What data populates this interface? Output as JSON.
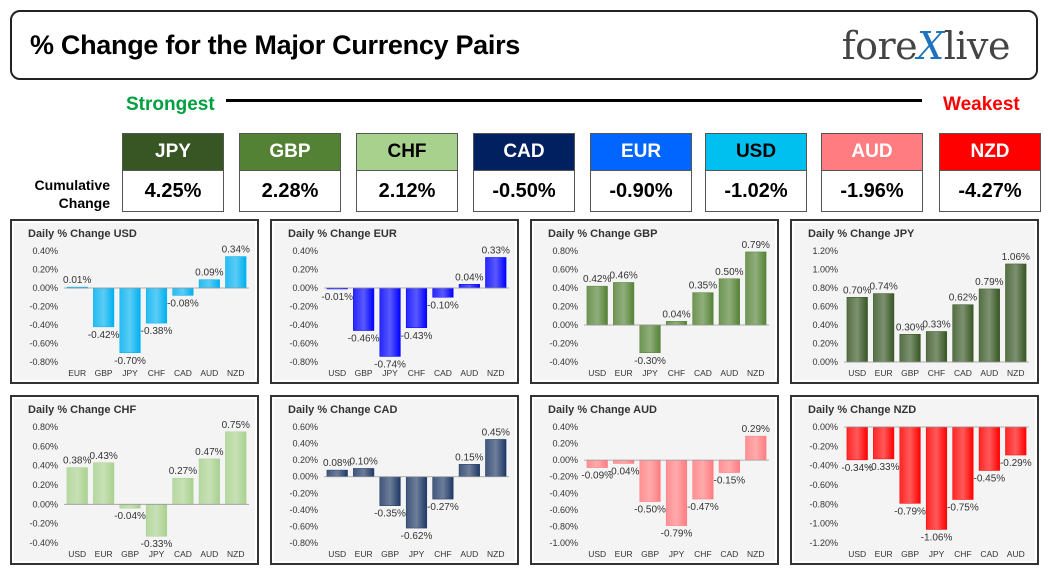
{
  "header": {
    "title": "% Change for the Major Currency Pairs",
    "logo_left": "fore",
    "logo_x": "X",
    "logo_right": "live"
  },
  "ranking": {
    "strongest_label": "Strongest",
    "weakest_label": "Weakest",
    "cumulative_label_1": "Cumulative",
    "cumulative_label_2": "Change",
    "tiles": [
      {
        "currency": "JPY",
        "value": "4.25%",
        "color": "#375623",
        "text_color": "#ffffff"
      },
      {
        "currency": "GBP",
        "value": "2.28%",
        "color": "#548235",
        "text_color": "#ffffff"
      },
      {
        "currency": "CHF",
        "value": "2.12%",
        "color": "#a9d18e",
        "text_color": "#000000"
      },
      {
        "currency": "CAD",
        "value": "-0.50%",
        "color": "#002060",
        "text_color": "#ffffff"
      },
      {
        "currency": "EUR",
        "value": "-0.90%",
        "color": "#0066ff",
        "text_color": "#ffffff"
      },
      {
        "currency": "USD",
        "value": "-1.02%",
        "color": "#00c0f0",
        "text_color": "#000000"
      },
      {
        "currency": "AUD",
        "value": "-1.96%",
        "color": "#ff7c80",
        "text_color": "#ffffff"
      },
      {
        "currency": "NZD",
        "value": "-4.27%",
        "color": "#ff0000",
        "text_color": "#ffffff"
      }
    ]
  },
  "chart_data": [
    {
      "type": "bar",
      "title": "Daily % Change USD",
      "color": "#00b0f0",
      "categories": [
        "EUR",
        "GBP",
        "JPY",
        "CHF",
        "CAD",
        "AUD",
        "NZD"
      ],
      "values": [
        0.01,
        -0.42,
        -0.7,
        -0.38,
        -0.08,
        0.09,
        0.34
      ],
      "labels": [
        "0.01%",
        "-0.42%",
        "-0.70%",
        "-0.38%",
        "-0.08%",
        "0.09%",
        "0.34%"
      ],
      "yticks": [
        0.4,
        0.2,
        0.0,
        -0.2,
        -0.4,
        -0.6,
        -0.8
      ],
      "ytick_labels": [
        "0.40%",
        "0.20%",
        "0.00%",
        "-0.20%",
        "-0.40%",
        "-0.60%",
        "-0.80%"
      ],
      "ylim": [
        -0.8,
        0.4
      ]
    },
    {
      "type": "bar",
      "title": "Daily % Change EUR",
      "color": "#0000ff",
      "categories": [
        "USD",
        "GBP",
        "JPY",
        "CHF",
        "CAD",
        "AUD",
        "NZD"
      ],
      "values": [
        -0.01,
        -0.46,
        -0.74,
        -0.43,
        -0.1,
        0.04,
        0.33
      ],
      "labels": [
        "-0.01%",
        "-0.46%",
        "-0.74%",
        "-0.43%",
        "-0.10%",
        "0.04%",
        "0.33%"
      ],
      "yticks": [
        0.4,
        0.2,
        0.0,
        -0.2,
        -0.4,
        -0.6,
        -0.8
      ],
      "ytick_labels": [
        "0.40%",
        "0.20%",
        "0.00%",
        "-0.20%",
        "-0.40%",
        "-0.60%",
        "-0.80%"
      ],
      "ylim": [
        -0.8,
        0.4
      ]
    },
    {
      "type": "bar",
      "title": "Daily % Change GBP",
      "color": "#548235",
      "categories": [
        "USD",
        "EUR",
        "JPY",
        "CHF",
        "CAD",
        "AUD",
        "NZD"
      ],
      "values": [
        0.42,
        0.46,
        -0.3,
        0.04,
        0.35,
        0.5,
        0.79
      ],
      "labels": [
        "0.42%",
        "0.46%",
        "-0.30%",
        "0.04%",
        "0.35%",
        "0.50%",
        "0.79%"
      ],
      "yticks": [
        0.8,
        0.6,
        0.4,
        0.2,
        0.0,
        -0.2,
        -0.4
      ],
      "ytick_labels": [
        "0.80%",
        "0.60%",
        "0.40%",
        "0.20%",
        "0.00%",
        "-0.20%",
        "-0.40%"
      ],
      "ylim": [
        -0.4,
        0.8
      ]
    },
    {
      "type": "bar",
      "title": "Daily % Change JPY",
      "color": "#375623",
      "categories": [
        "USD",
        "EUR",
        "GBP",
        "CHF",
        "CAD",
        "AUD",
        "NZD"
      ],
      "values": [
        0.7,
        0.74,
        0.3,
        0.33,
        0.62,
        0.79,
        1.06
      ],
      "labels": [
        "0.70%",
        "0.74%",
        "0.30%",
        "0.33%",
        "0.62%",
        "0.79%",
        "1.06%"
      ],
      "yticks": [
        1.2,
        1.0,
        0.8,
        0.6,
        0.4,
        0.2,
        0.0
      ],
      "ytick_labels": [
        "1.20%",
        "1.00%",
        "0.80%",
        "0.60%",
        "0.40%",
        "0.20%",
        "0.00%"
      ],
      "ylim": [
        0,
        1.2
      ]
    },
    {
      "type": "bar",
      "title": "Daily % Change CHF",
      "color": "#a9d18e",
      "categories": [
        "USD",
        "EUR",
        "GBP",
        "JPY",
        "CAD",
        "AUD",
        "NZD"
      ],
      "values": [
        0.38,
        0.43,
        -0.04,
        -0.33,
        0.27,
        0.47,
        0.75
      ],
      "labels": [
        "0.38%",
        "0.43%",
        "-0.04%",
        "-0.33%",
        "0.27%",
        "0.47%",
        "0.75%"
      ],
      "yticks": [
        0.8,
        0.6,
        0.4,
        0.2,
        0.0,
        -0.2,
        -0.4
      ],
      "ytick_labels": [
        "0.80%",
        "0.60%",
        "0.40%",
        "0.20%",
        "0.00%",
        "-0.20%",
        "-0.40%"
      ],
      "ylim": [
        -0.4,
        0.8
      ]
    },
    {
      "type": "bar",
      "title": "Daily % Change CAD",
      "color": "#1f3864",
      "categories": [
        "USD",
        "EUR",
        "GBP",
        "JPY",
        "CHF",
        "AUD",
        "NZD"
      ],
      "values": [
        0.08,
        0.1,
        -0.35,
        -0.62,
        -0.27,
        0.15,
        0.45
      ],
      "labels": [
        "0.08%",
        "0.10%",
        "-0.35%",
        "-0.62%",
        "-0.27%",
        "0.15%",
        "0.45%"
      ],
      "yticks": [
        0.6,
        0.4,
        0.2,
        0.0,
        -0.2,
        -0.4,
        -0.6,
        -0.8
      ],
      "ytick_labels": [
        "0.60%",
        "0.40%",
        "0.20%",
        "0.00%",
        "-0.20%",
        "-0.40%",
        "-0.60%",
        "-0.80%"
      ],
      "ylim": [
        -0.8,
        0.6
      ]
    },
    {
      "type": "bar",
      "title": "Daily % Change AUD",
      "color": "#ff7c80",
      "categories": [
        "USD",
        "EUR",
        "GBP",
        "JPY",
        "CHF",
        "CAD",
        "NZD"
      ],
      "values": [
        -0.09,
        -0.04,
        -0.5,
        -0.79,
        -0.47,
        -0.15,
        0.29
      ],
      "labels": [
        "-0.09%",
        "-0.04%",
        "-0.50%",
        "-0.79%",
        "-0.47%",
        "-0.15%",
        "0.29%"
      ],
      "yticks": [
        0.4,
        0.2,
        0.0,
        -0.2,
        -0.4,
        -0.6,
        -0.8,
        -1.0
      ],
      "ytick_labels": [
        "0.40%",
        "0.20%",
        "0.00%",
        "-0.20%",
        "-0.40%",
        "-0.60%",
        "-0.80%",
        "-1.00%"
      ],
      "ylim": [
        -1.0,
        0.4
      ]
    },
    {
      "type": "bar",
      "title": "Daily % Change NZD",
      "color": "#ff0000",
      "categories": [
        "USD",
        "EUR",
        "GBP",
        "JPY",
        "CHF",
        "CAD",
        "AUD"
      ],
      "values": [
        -0.34,
        -0.33,
        -0.79,
        -1.06,
        -0.75,
        -0.45,
        -0.29
      ],
      "labels": [
        "-0.34%",
        "-0.33%",
        "-0.79%",
        "-1.06%",
        "-0.75%",
        "-0.45%",
        "-0.29%"
      ],
      "yticks": [
        0.0,
        -0.2,
        -0.4,
        -0.6,
        -0.8,
        -1.0,
        -1.2
      ],
      "ytick_labels": [
        "0.00%",
        "-0.20%",
        "-0.40%",
        "-0.60%",
        "-0.80%",
        "-1.00%",
        "-1.20%"
      ],
      "ylim": [
        -1.2,
        0.0
      ]
    }
  ]
}
